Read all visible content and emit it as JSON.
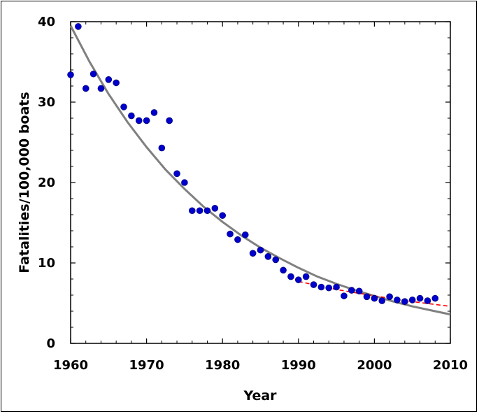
{
  "chart_data": {
    "type": "scatter",
    "title": "",
    "xlabel": "Year",
    "ylabel": "Fatalities/100,000 boats",
    "xlim": [
      1960,
      2010
    ],
    "ylim": [
      0,
      40
    ],
    "x_ticks": [
      1960,
      1970,
      1980,
      1990,
      2000,
      2010
    ],
    "y_ticks": [
      0,
      10,
      20,
      30,
      40
    ],
    "x_tick_labels": [
      "1960",
      "1970",
      "1980",
      "1990",
      "2000",
      "2010"
    ],
    "y_tick_labels": [
      "0",
      "10",
      "20",
      "30",
      "40"
    ],
    "grid": false,
    "legend": "none",
    "series": [
      {
        "type": "scatter",
        "color": "#0000cc",
        "x": [
          1960,
          1961,
          1962,
          1963,
          1964,
          1965,
          1966,
          1967,
          1968,
          1969,
          1970,
          1971,
          1972,
          1973,
          1974,
          1975,
          1976,
          1977,
          1978,
          1979,
          1980,
          1981,
          1982,
          1983,
          1984,
          1985,
          1986,
          1987,
          1988,
          1989,
          1990,
          1991,
          1992,
          1993,
          1994,
          1995,
          1996,
          1997,
          1998,
          1999,
          2000,
          2001,
          2002,
          2003,
          2004,
          2005,
          2006,
          2007,
          2008
        ],
        "y": [
          33.4,
          39.4,
          31.7,
          33.5,
          31.7,
          32.8,
          32.4,
          29.4,
          28.3,
          27.7,
          27.7,
          28.7,
          24.3,
          27.7,
          21.1,
          20.0,
          16.5,
          16.5,
          16.5,
          16.8,
          15.9,
          13.6,
          12.9,
          13.5,
          11.2,
          11.6,
          10.8,
          10.4,
          9.1,
          8.3,
          7.9,
          8.3,
          7.3,
          7.0,
          6.9,
          7.0,
          5.9,
          6.6,
          6.5,
          5.8,
          5.6,
          5.3,
          5.8,
          5.4,
          5.2,
          5.4,
          5.6,
          5.3,
          5.6
        ]
      },
      {
        "type": "line",
        "color": "#808080",
        "x": [
          1960,
          1962.5,
          1965,
          1967.5,
          1970,
          1972.5,
          1975,
          1977.5,
          1980,
          1982.5,
          1985,
          1987.5,
          1990,
          1992.5,
          1995,
          1997.5,
          2000,
          2002.5,
          2005,
          2007.5,
          2010
        ],
        "y": [
          39.5,
          35.0,
          31.0,
          27.5,
          24.4,
          21.6,
          19.2,
          17.0,
          15.1,
          13.4,
          11.9,
          10.6,
          9.4,
          8.3,
          7.4,
          6.6,
          5.9,
          5.2,
          4.6,
          4.1,
          3.6
        ]
      },
      {
        "type": "line",
        "style": "dashed",
        "color": "#ff0000",
        "x": [
          1990,
          1995,
          2000,
          2005,
          2010
        ],
        "y": [
          7.7,
          6.7,
          5.9,
          5.2,
          4.6
        ]
      }
    ]
  }
}
